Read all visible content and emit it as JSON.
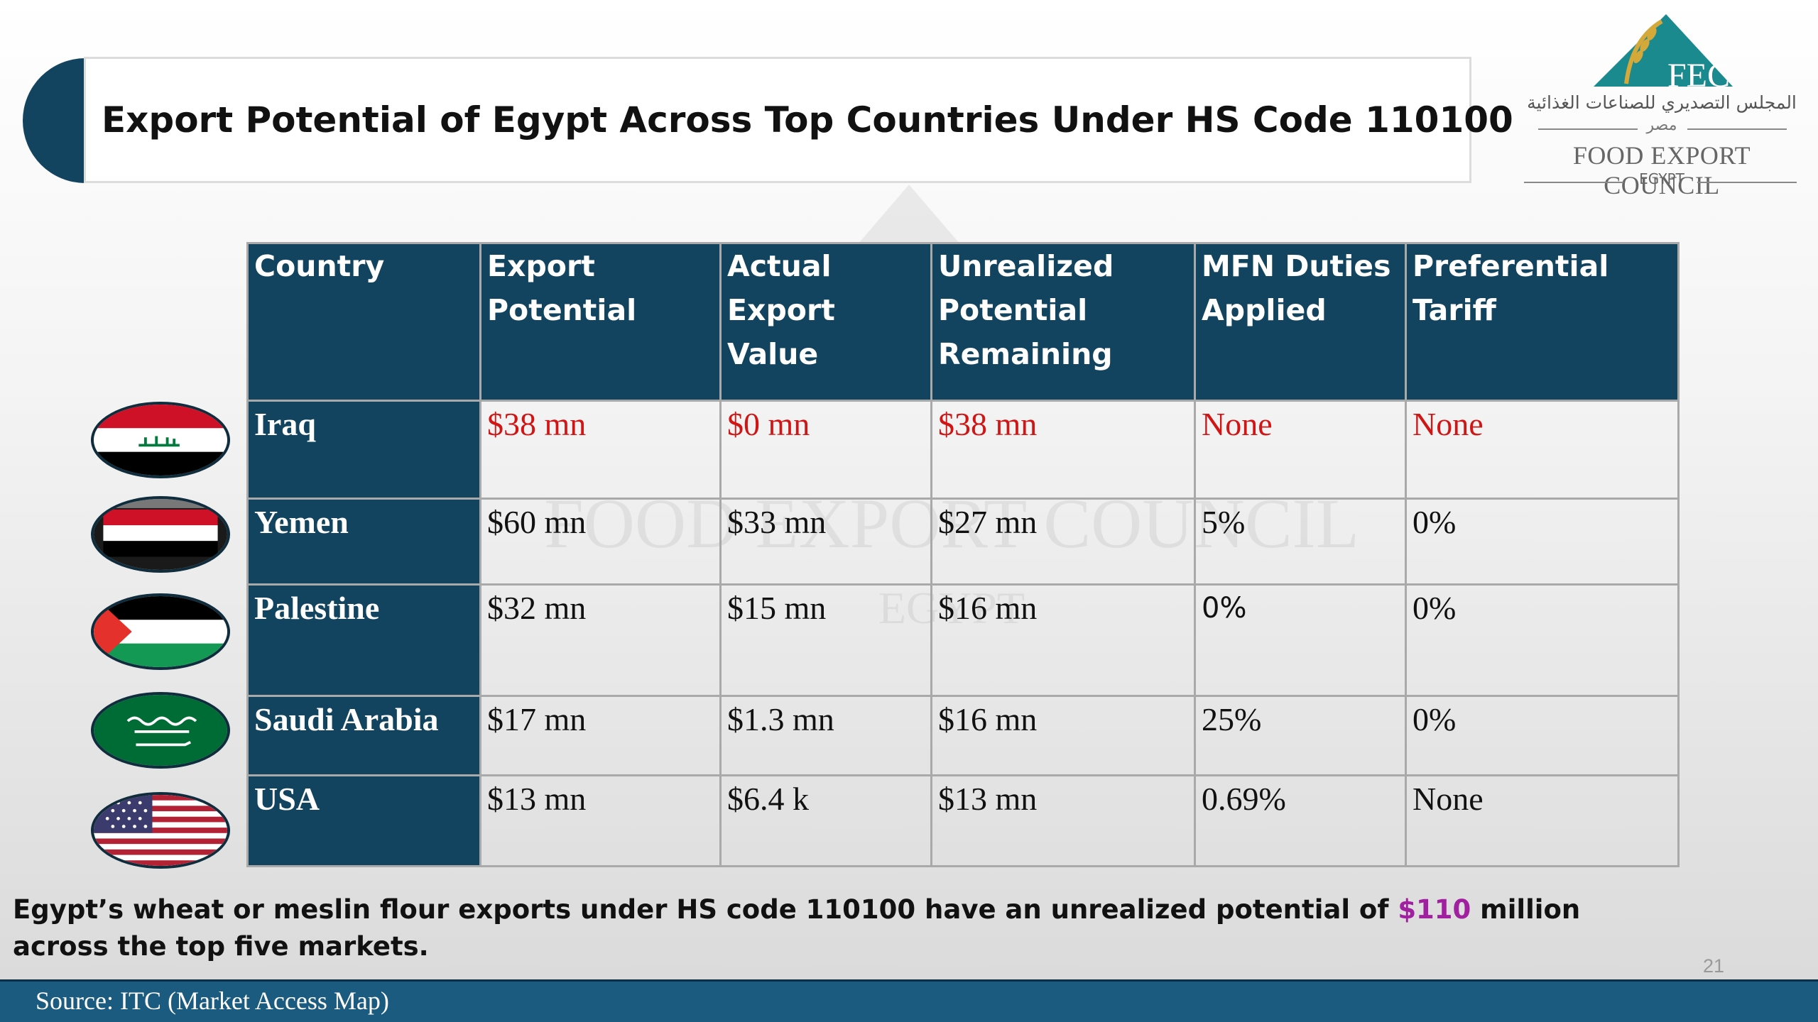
{
  "title": "Export Potential of Egypt Across Top Countries Under HS Code 110100",
  "logo": {
    "mark": "FEC",
    "arabic": "المجلس التصديري للصناعات الغذائية",
    "arabic_sub": "مصر",
    "english": "FOOD EXPORT COUNCIL",
    "country": "EGYPT"
  },
  "table": {
    "headers": [
      [
        "Country"
      ],
      [
        "Export",
        "Potential"
      ],
      [
        "Actual",
        "Export Value"
      ],
      [
        "Unrealized",
        "Potential",
        "Remaining"
      ],
      [
        "MFN Duties",
        "Applied"
      ],
      [
        "Preferential",
        "Tariff"
      ]
    ],
    "rows": [
      {
        "country": "Iraq",
        "flag": "iraq-flag-icon",
        "export_potential": "$38 mn",
        "actual_export": "$0 mn",
        "unrealized": "$38 mn",
        "mfn": "None",
        "preferential": "None"
      },
      {
        "country": "Yemen",
        "flag": "yemen-flag-icon",
        "export_potential": "$60 mn",
        "actual_export": "$33 mn",
        "unrealized": "$27 mn",
        "mfn": "5%",
        "preferential": "0%"
      },
      {
        "country": "Palestine",
        "flag": "palestine-flag-icon",
        "export_potential": "$32 mn",
        "actual_export": "$15 mn",
        "unrealized": "$16 mn",
        "mfn": "0%",
        "preferential": "0%"
      },
      {
        "country": "Saudi Arabia",
        "flag": "saudi-flag-icon",
        "export_potential": "$17 mn",
        "actual_export": "$1.3 mn",
        "unrealized": "$16 mn",
        "mfn": "25%",
        "preferential": "0%"
      },
      {
        "country": "USA",
        "flag": "usa-flag-icon",
        "export_potential": "$13 mn",
        "actual_export": "$6.4 k",
        "unrealized": "$13 mn",
        "mfn": "0.69%",
        "preferential": "None"
      }
    ]
  },
  "caption": {
    "before": "Egypt’s wheat or meslin flour exports under HS code 110100 have an unrealized potential of ",
    "highlight": "$110",
    "after": " million across the top five markets."
  },
  "page_number": "21",
  "source": "Source: ITC (Market Access Map)",
  "colors": {
    "navy": "#124460",
    "footer": "#1b5b7f",
    "red_values": "#d11515",
    "highlight": "#a020a0"
  }
}
